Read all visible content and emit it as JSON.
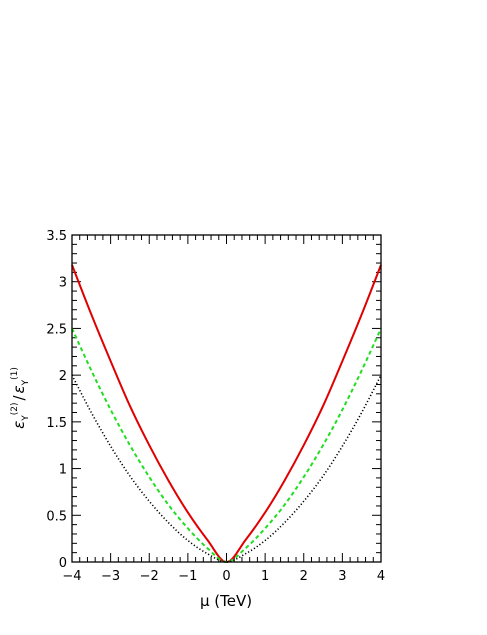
{
  "chart_data": {
    "type": "line",
    "xlabel": "μ (TeV)",
    "ylabel": {
      "eps": "ε",
      "sub": "Υ",
      "num_sup": "(2)",
      "den_sup": "(1)",
      "slash": "/"
    },
    "xlim": [
      -4,
      4
    ],
    "ylim": [
      0,
      3.5
    ],
    "x_ticks": [
      -4,
      -3,
      -2,
      -1,
      0,
      1,
      2,
      3,
      4
    ],
    "x_tick_labels": [
      "−4",
      "−3",
      "−2",
      "−1",
      "0",
      "1",
      "2",
      "3",
      "4"
    ],
    "y_ticks": [
      0,
      0.5,
      1,
      1.5,
      2,
      2.5,
      3,
      3.5
    ],
    "y_tick_labels": [
      "0",
      "0.5",
      "1",
      "1.5",
      "2",
      "2.5",
      "3",
      "3.5"
    ],
    "grid": false,
    "legend": "none",
    "x": [
      -4,
      -3.5,
      -3,
      -2.5,
      -2,
      -1.5,
      -1,
      -0.5,
      0,
      0.5,
      1,
      1.5,
      2,
      2.5,
      3,
      3.5,
      4
    ],
    "series": [
      {
        "style": "solid",
        "color": "#e00000",
        "values": [
          3.18,
          2.65,
          2.15,
          1.67,
          1.25,
          0.87,
          0.53,
          0.24,
          0.0,
          0.24,
          0.53,
          0.87,
          1.25,
          1.67,
          2.15,
          2.65,
          3.18
        ]
      },
      {
        "style": "dashed",
        "color": "#22dd22",
        "values": [
          2.5,
          2.05,
          1.63,
          1.25,
          0.91,
          0.61,
          0.36,
          0.15,
          0.0,
          0.15,
          0.36,
          0.61,
          0.91,
          1.25,
          1.63,
          2.05,
          2.5
        ]
      },
      {
        "style": "dotted",
        "color": "#000000",
        "values": [
          2.0,
          1.6,
          1.24,
          0.92,
          0.65,
          0.42,
          0.23,
          0.09,
          0.0,
          0.09,
          0.23,
          0.42,
          0.65,
          0.92,
          1.24,
          1.6,
          2.0
        ]
      }
    ]
  }
}
